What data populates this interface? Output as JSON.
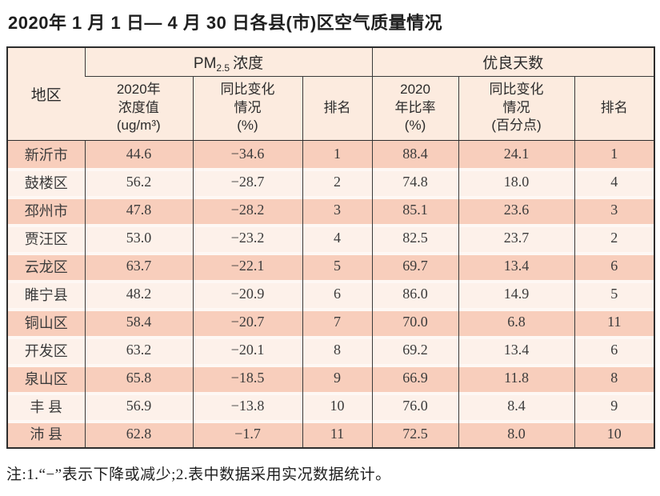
{
  "page": {
    "title": "2020年 1 月 1 日— 4 月 30 日各县(市)区空气质量情况",
    "footnote": "注:1.“−”表示下降或减少;2.表中数据采用实况数据统计。"
  },
  "colors": {
    "row_odd": "#f8cebc",
    "row_even": "#fdf1ea",
    "header_bg": "#fcebdf",
    "border": "#3a3a3a",
    "text": "#3b3b3b"
  },
  "table": {
    "header": {
      "region": "地区",
      "pm25_group": {
        "prefix": "PM",
        "sub": "2.5",
        "suffix": "浓度"
      },
      "good_days_group": "优良天数",
      "pm_value_lines": "2020年\n浓度值\n(ug/m³)",
      "pm_change_lines": "同比变化\n情况\n(%)",
      "pm_rank": "排名",
      "ratio_lines": "2020\n年比率\n(%)",
      "ratio_change_lines": "同比变化\n情况\n(百分点)",
      "ratio_rank": "排名"
    },
    "rows": [
      {
        "region": "新沂市",
        "pm_value": "44.6",
        "pm_change": "−34.6",
        "pm_rank": "1",
        "ratio": "88.4",
        "ratio_change": "24.1",
        "ratio_rank": "1"
      },
      {
        "region": "鼓楼区",
        "pm_value": "56.2",
        "pm_change": "−28.7",
        "pm_rank": "2",
        "ratio": "74.8",
        "ratio_change": "18.0",
        "ratio_rank": "4"
      },
      {
        "region": "邳州市",
        "pm_value": "47.8",
        "pm_change": "−28.2",
        "pm_rank": "3",
        "ratio": "85.1",
        "ratio_change": "23.6",
        "ratio_rank": "3"
      },
      {
        "region": "贾汪区",
        "pm_value": "53.0",
        "pm_change": "−23.2",
        "pm_rank": "4",
        "ratio": "82.5",
        "ratio_change": "23.7",
        "ratio_rank": "2"
      },
      {
        "region": "云龙区",
        "pm_value": "63.7",
        "pm_change": "−22.1",
        "pm_rank": "5",
        "ratio": "69.7",
        "ratio_change": "13.4",
        "ratio_rank": "6"
      },
      {
        "region": "睢宁县",
        "pm_value": "48.2",
        "pm_change": "−20.9",
        "pm_rank": "6",
        "ratio": "86.0",
        "ratio_change": "14.9",
        "ratio_rank": "5"
      },
      {
        "region": "铜山区",
        "pm_value": "58.4",
        "pm_change": "−20.7",
        "pm_rank": "7",
        "ratio": "70.0",
        "ratio_change": "6.8",
        "ratio_rank": "11"
      },
      {
        "region": "开发区",
        "pm_value": "63.2",
        "pm_change": "−20.1",
        "pm_rank": "8",
        "ratio": "69.2",
        "ratio_change": "13.4",
        "ratio_rank": "6"
      },
      {
        "region": "泉山区",
        "pm_value": "65.8",
        "pm_change": "−18.5",
        "pm_rank": "9",
        "ratio": "66.9",
        "ratio_change": "11.8",
        "ratio_rank": "8"
      },
      {
        "region": "丰 县",
        "pm_value": "56.9",
        "pm_change": "−13.8",
        "pm_rank": "10",
        "ratio": "76.0",
        "ratio_change": "8.4",
        "ratio_rank": "9"
      },
      {
        "region": "沛 县",
        "pm_value": "62.8",
        "pm_change": "−1.7",
        "pm_rank": "11",
        "ratio": "72.5",
        "ratio_change": "8.0",
        "ratio_rank": "10"
      }
    ]
  }
}
